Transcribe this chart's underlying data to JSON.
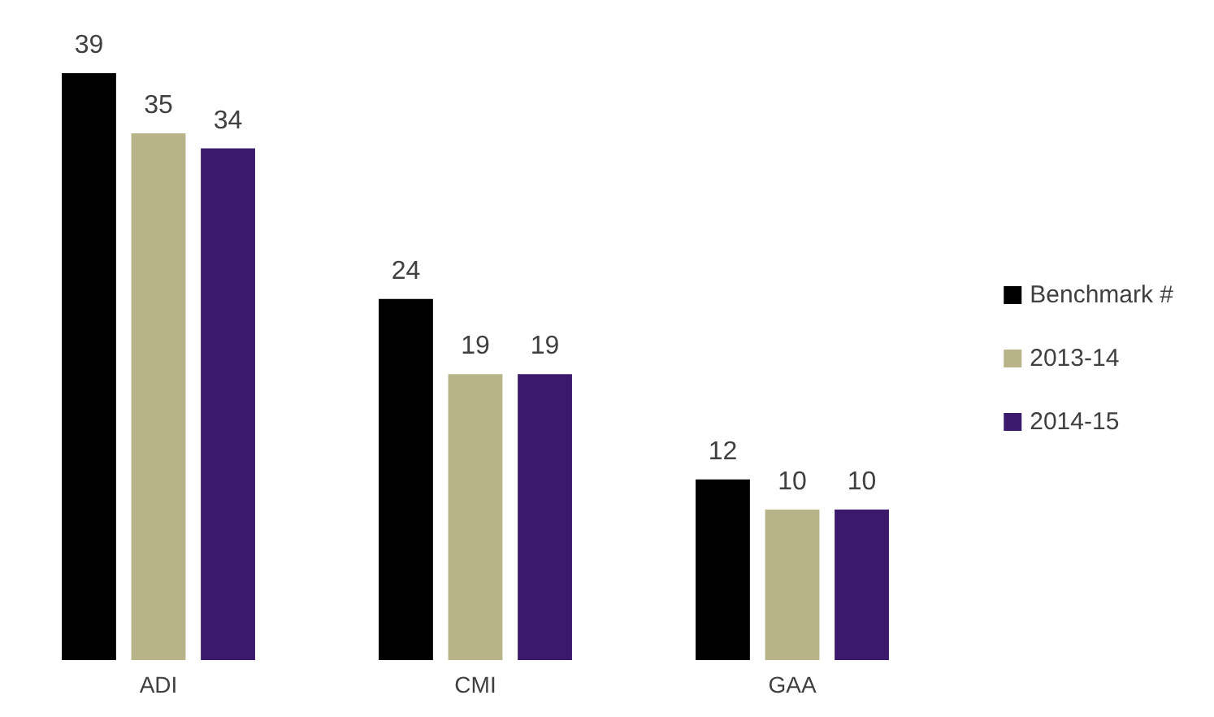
{
  "chart_data": {
    "type": "bar",
    "categories": [
      "ADI",
      "CMI",
      "GAA"
    ],
    "series": [
      {
        "name": "Benchmark #",
        "color": "#000000",
        "values": [
          39,
          24,
          12
        ]
      },
      {
        "name": "2013-14",
        "color": "#b8b48a",
        "values": [
          35,
          19,
          10
        ]
      },
      {
        "name": "2014-15",
        "color": "#3b1a6b",
        "values": [
          34,
          19,
          10
        ]
      }
    ],
    "data_labels": true,
    "legend": "right"
  }
}
